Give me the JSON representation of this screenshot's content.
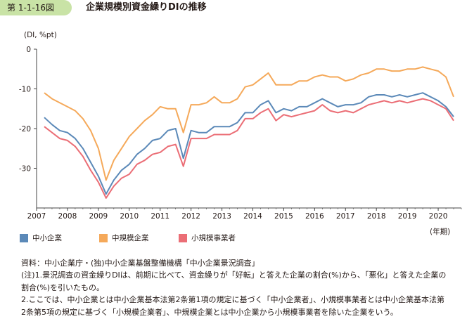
{
  "header": {
    "figure_label": "第 1-1-16図",
    "title": "企業規模別資金繰りDIの推移"
  },
  "notes": {
    "source": "資料：中小企業庁・(独)中小企業基盤整備機構「中小企業景況調査」",
    "note1_line1": "(注)1.景況調査の資金繰りDIは、前期に比べて、資金繰りが「好転」と答えた企業の割合(%)から、「悪化」と答えた企業の",
    "note1_line2": "割合(%)を引いたもの。",
    "note2_line1": " 2.ここでは、中小企業とは中小企業基本法第2条第1項の規定に基づく「中小企業者」、小規模事業者とは中小企業基本法第",
    "note2_line2": "2条第5項の規定に基づく「小規模企業者」、中規模企業とは中小企業から小規模事業者を除いた企業をいう。"
  },
  "colors": {
    "sme": "#5b89b8",
    "medium": "#f5a95a",
    "small": "#eb6e76",
    "badge": "#c9e3a6",
    "axis": "#444444",
    "grid": "#dddddd"
  },
  "chart_data": {
    "type": "line",
    "title": "企業規模別資金繰りDIの推移",
    "ylabel": "(DI, %pt)",
    "xlabel": "(年期)",
    "ylim": [
      -40,
      0
    ],
    "yticks": [
      0,
      -10,
      -20,
      -30
    ],
    "grid": false,
    "legend_position": "bottom",
    "x_tick_labels": [
      "2007",
      "2008",
      "2009",
      "2010",
      "2011",
      "2012",
      "2013",
      "2014",
      "2015",
      "2016",
      "2017",
      "2018",
      "2019",
      "2020"
    ],
    "x_start": 2007.25,
    "x_step": 0.25,
    "series": [
      {
        "name": "中小企業",
        "color_key": "sme",
        "values": [
          -17.2,
          -19.0,
          -20.5,
          -21.0,
          -22.5,
          -25.0,
          -28.5,
          -32.0,
          -36.5,
          -33.0,
          -30.5,
          -29.0,
          -26.5,
          -25.0,
          -23.0,
          -22.5,
          -20.5,
          -20.0,
          -27.5,
          -20.5,
          -21.0,
          -21.0,
          -19.5,
          -19.5,
          -19.5,
          -18.5,
          -16.0,
          -16.0,
          -14.0,
          -13.0,
          -16.0,
          -15.0,
          -15.5,
          -14.5,
          -14.5,
          -13.5,
          -12.5,
          -13.5,
          -14.5,
          -14.0,
          -14.0,
          -13.5,
          -12.0,
          -11.5,
          -11.5,
          -12.0,
          -11.5,
          -12.0,
          -11.5,
          -11.0,
          -12.0,
          -13.0,
          -14.5,
          -17.0
        ]
      },
      {
        "name": "中規模企業",
        "color_key": "medium",
        "values": [
          -11.0,
          -12.5,
          -13.5,
          -14.5,
          -15.5,
          -17.5,
          -20.5,
          -25.0,
          -33.0,
          -28.0,
          -25.0,
          -22.0,
          -20.0,
          -18.0,
          -16.5,
          -14.5,
          -15.0,
          -15.0,
          -21.0,
          -14.0,
          -14.0,
          -13.5,
          -12.0,
          -13.5,
          -13.5,
          -12.5,
          -9.5,
          -9.0,
          -7.5,
          -6.0,
          -9.0,
          -9.0,
          -9.0,
          -8.0,
          -8.0,
          -7.0,
          -6.5,
          -7.0,
          -7.0,
          -8.0,
          -7.5,
          -6.5,
          -6.0,
          -5.0,
          -5.0,
          -5.5,
          -5.5,
          -5.0,
          -5.0,
          -4.5,
          -5.0,
          -5.5,
          -7.0,
          -12.0
        ]
      },
      {
        "name": "小規模事業者",
        "color_key": "small",
        "values": [
          -19.5,
          -21.0,
          -22.5,
          -23.0,
          -24.5,
          -27.0,
          -30.5,
          -33.5,
          -37.5,
          -34.5,
          -32.5,
          -31.5,
          -29.0,
          -28.0,
          -26.5,
          -26.0,
          -24.5,
          -24.0,
          -29.5,
          -22.5,
          -22.5,
          -22.5,
          -21.5,
          -21.5,
          -21.5,
          -20.5,
          -17.5,
          -17.5,
          -16.0,
          -15.0,
          -18.0,
          -16.5,
          -17.0,
          -16.5,
          -16.0,
          -15.5,
          -14.0,
          -15.5,
          -16.0,
          -15.5,
          -16.0,
          -15.0,
          -14.0,
          -13.5,
          -13.0,
          -13.5,
          -13.0,
          -13.5,
          -13.0,
          -12.5,
          -13.0,
          -14.0,
          -15.0,
          -18.0
        ]
      }
    ]
  }
}
